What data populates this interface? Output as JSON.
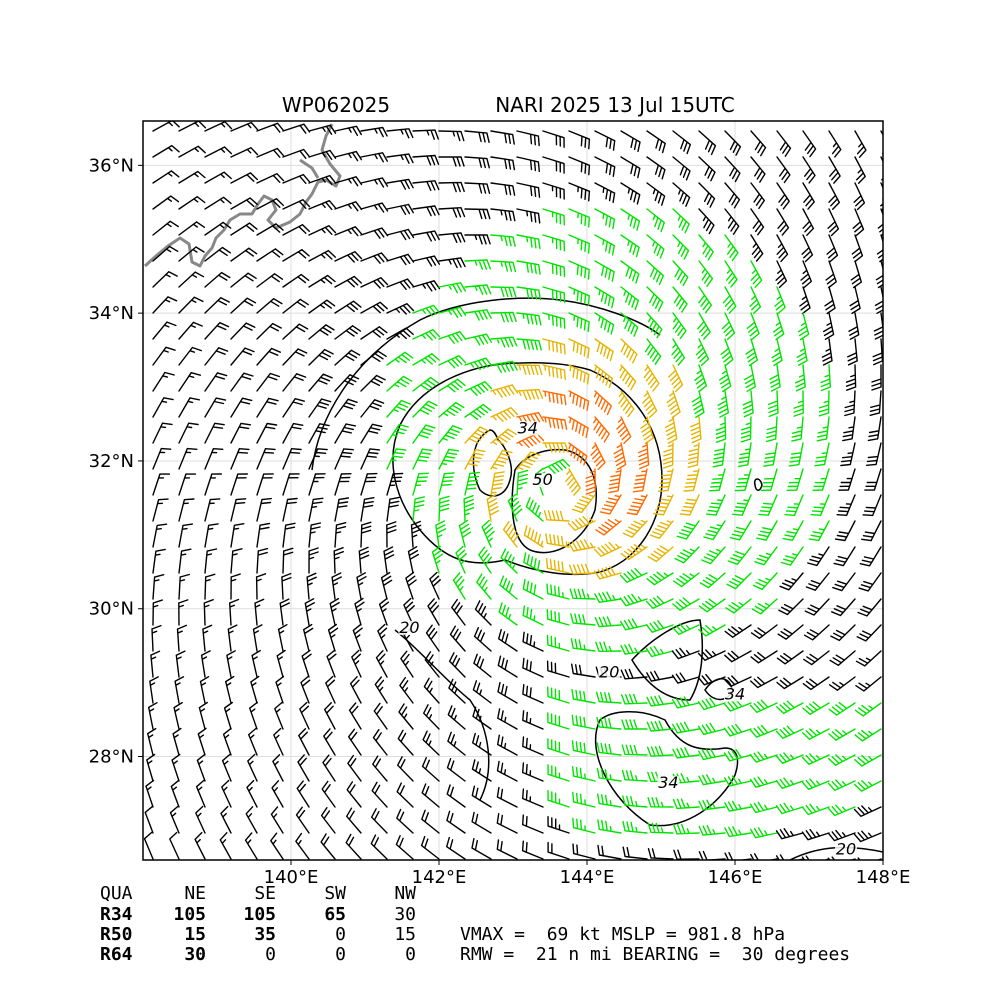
{
  "storm": {
    "id": "WP062025",
    "title": "NARI 2025 13 Jul 15UTC"
  },
  "map": {
    "lon_range": [
      138.0,
      148.0
    ],
    "lat_range": [
      26.6,
      36.6
    ],
    "lon_ticks": [
      {
        "value": 140,
        "label": "140°E"
      },
      {
        "value": 142,
        "label": "142°E"
      },
      {
        "value": 144,
        "label": "144°E"
      },
      {
        "value": 146,
        "label": "146°E"
      },
      {
        "value": 148,
        "label": "148°E"
      }
    ],
    "lat_ticks": [
      {
        "value": 28,
        "label": "28°N"
      },
      {
        "value": 30,
        "label": "30°N"
      },
      {
        "value": 32,
        "label": "32°N"
      },
      {
        "value": 34,
        "label": "34°N"
      },
      {
        "value": 36,
        "label": "36°N"
      }
    ],
    "grid": true,
    "center": {
      "lon": 143.6,
      "lat": 31.7
    },
    "colors": {
      "below_34": "#000000",
      "r34": "#00e400",
      "r50": "#e6b400",
      "r64": "#ff6a00",
      "coast": "#888888"
    },
    "contour_labels": [
      {
        "text": "34",
        "lon": 143.2,
        "lat": 32.4
      },
      {
        "text": "50",
        "lon": 143.4,
        "lat": 31.7
      },
      {
        "text": "20",
        "lon": 141.6,
        "lat": 29.7
      },
      {
        "text": "20",
        "lon": 144.3,
        "lat": 29.1
      },
      {
        "text": "34",
        "lon": 146.0,
        "lat": 28.8
      },
      {
        "text": "34",
        "lon": 145.1,
        "lat": 27.6
      },
      {
        "text": "20",
        "lon": 147.5,
        "lat": 26.7
      }
    ]
  },
  "radii_table": {
    "headers": [
      "QUA",
      "NE",
      "SE",
      "SW",
      "NW"
    ],
    "rows": [
      {
        "label": "R34",
        "values": [
          "105",
          "105",
          "65",
          "30"
        ]
      },
      {
        "label": "R50",
        "values": [
          "15",
          "35",
          "0",
          "15"
        ]
      },
      {
        "label": "R64",
        "values": [
          "30",
          "0",
          "0",
          "0"
        ]
      }
    ]
  },
  "summary": {
    "line1": "VMAX =  69 kt MSLP = 981.8 hPa",
    "line2": "RMW =  21 n mi BEARING =  30 degrees"
  }
}
